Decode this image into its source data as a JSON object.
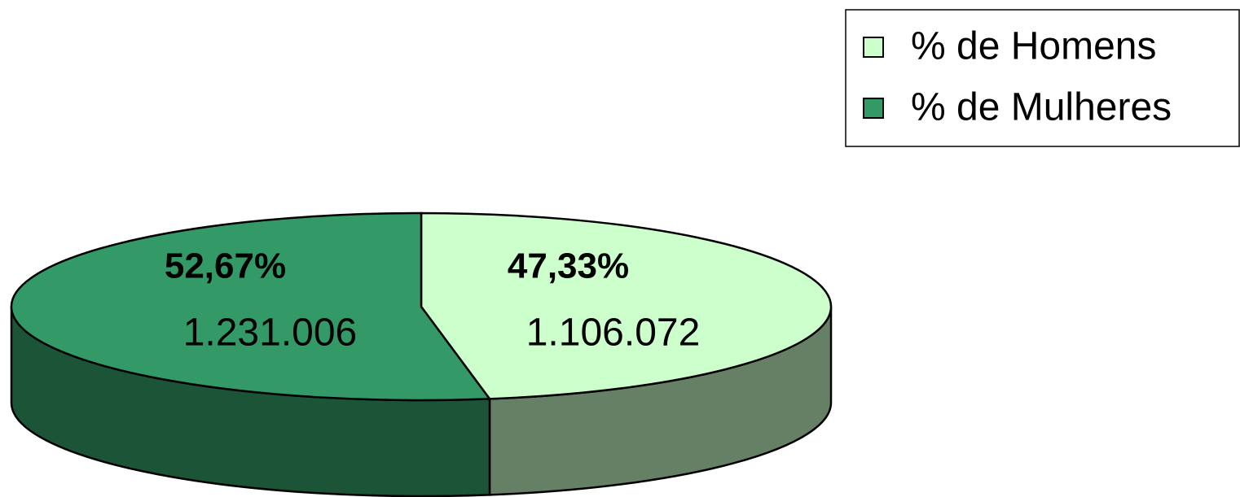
{
  "chart_data": {
    "type": "pie",
    "categories": [
      "% de Homens",
      "% de Mulheres"
    ],
    "values": [
      47.33,
      52.67
    ],
    "value_labels": [
      "47,33%",
      "52,67%"
    ],
    "counts": [
      1106072,
      1231006
    ],
    "count_labels": [
      "1.106.072",
      "1.231.006"
    ],
    "colors": [
      "#ccffcc",
      "#339966"
    ],
    "legend": "top-right"
  }
}
